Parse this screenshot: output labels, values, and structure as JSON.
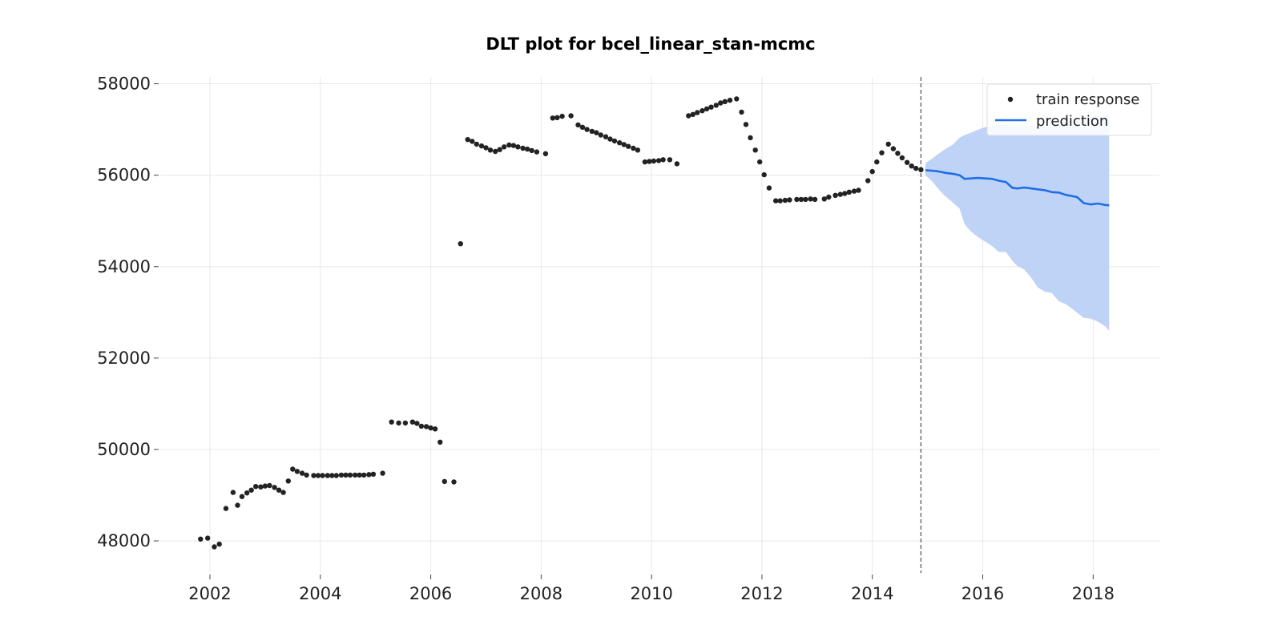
{
  "chart_data": {
    "type": "scatter",
    "title": "DLT plot for bcel_linear_stan-mcmc",
    "xlabel": "",
    "ylabel": "",
    "xlim": [
      2001.1,
      2019.2
    ],
    "ylim": [
      47300,
      58150
    ],
    "x_ticks": [
      2002,
      2004,
      2006,
      2008,
      2010,
      2012,
      2014,
      2016,
      2018
    ],
    "y_ticks": [
      48000,
      50000,
      52000,
      54000,
      56000,
      58000
    ],
    "grid": true,
    "legend_position": "top-right",
    "forecast_start": 2014.88,
    "series": [
      {
        "name": "train response",
        "kind": "scatter",
        "color": "#222222",
        "points": [
          [
            2001.83,
            48040
          ],
          [
            2001.96,
            48060
          ],
          [
            2002.08,
            47870
          ],
          [
            2002.17,
            47930
          ],
          [
            2002.29,
            48710
          ],
          [
            2002.42,
            49060
          ],
          [
            2002.5,
            48780
          ],
          [
            2002.58,
            48970
          ],
          [
            2002.67,
            49050
          ],
          [
            2002.75,
            49110
          ],
          [
            2002.83,
            49190
          ],
          [
            2002.92,
            49180
          ],
          [
            2003.0,
            49200
          ],
          [
            2003.08,
            49210
          ],
          [
            2003.17,
            49170
          ],
          [
            2003.25,
            49110
          ],
          [
            2003.33,
            49060
          ],
          [
            2003.42,
            49310
          ],
          [
            2003.5,
            49570
          ],
          [
            2003.58,
            49520
          ],
          [
            2003.67,
            49480
          ],
          [
            2003.75,
            49440
          ],
          [
            2003.88,
            49430
          ],
          [
            2003.96,
            49430
          ],
          [
            2004.04,
            49430
          ],
          [
            2004.13,
            49430
          ],
          [
            2004.21,
            49430
          ],
          [
            2004.29,
            49430
          ],
          [
            2004.38,
            49440
          ],
          [
            2004.46,
            49440
          ],
          [
            2004.54,
            49440
          ],
          [
            2004.63,
            49440
          ],
          [
            2004.71,
            49440
          ],
          [
            2004.79,
            49440
          ],
          [
            2004.88,
            49450
          ],
          [
            2004.96,
            49460
          ],
          [
            2005.13,
            49480
          ],
          [
            2005.29,
            50600
          ],
          [
            2005.42,
            50580
          ],
          [
            2005.54,
            50580
          ],
          [
            2005.67,
            50600
          ],
          [
            2005.75,
            50570
          ],
          [
            2005.83,
            50510
          ],
          [
            2005.92,
            50500
          ],
          [
            2006.0,
            50470
          ],
          [
            2006.08,
            50450
          ],
          [
            2006.17,
            50160
          ],
          [
            2006.25,
            49300
          ],
          [
            2006.42,
            49290
          ],
          [
            2006.54,
            54500
          ],
          [
            2006.67,
            56780
          ],
          [
            2006.75,
            56740
          ],
          [
            2006.83,
            56680
          ],
          [
            2006.92,
            56640
          ],
          [
            2007.0,
            56600
          ],
          [
            2007.08,
            56550
          ],
          [
            2007.17,
            56520
          ],
          [
            2007.25,
            56560
          ],
          [
            2007.33,
            56620
          ],
          [
            2007.42,
            56660
          ],
          [
            2007.5,
            56650
          ],
          [
            2007.58,
            56620
          ],
          [
            2007.67,
            56590
          ],
          [
            2007.75,
            56570
          ],
          [
            2007.83,
            56540
          ],
          [
            2007.92,
            56510
          ],
          [
            2008.08,
            56470
          ],
          [
            2008.21,
            57250
          ],
          [
            2008.29,
            57260
          ],
          [
            2008.38,
            57290
          ],
          [
            2008.54,
            57300
          ],
          [
            2008.67,
            57100
          ],
          [
            2008.75,
            57050
          ],
          [
            2008.83,
            57000
          ],
          [
            2008.92,
            56960
          ],
          [
            2009.0,
            56930
          ],
          [
            2009.08,
            56880
          ],
          [
            2009.17,
            56840
          ],
          [
            2009.25,
            56790
          ],
          [
            2009.33,
            56750
          ],
          [
            2009.42,
            56710
          ],
          [
            2009.5,
            56670
          ],
          [
            2009.58,
            56630
          ],
          [
            2009.67,
            56590
          ],
          [
            2009.75,
            56550
          ],
          [
            2009.88,
            56290
          ],
          [
            2009.96,
            56300
          ],
          [
            2010.04,
            56310
          ],
          [
            2010.13,
            56320
          ],
          [
            2010.21,
            56340
          ],
          [
            2010.33,
            56340
          ],
          [
            2010.46,
            56250
          ],
          [
            2010.67,
            57300
          ],
          [
            2010.75,
            57330
          ],
          [
            2010.83,
            57370
          ],
          [
            2010.92,
            57410
          ],
          [
            2011.0,
            57450
          ],
          [
            2011.08,
            57490
          ],
          [
            2011.17,
            57530
          ],
          [
            2011.25,
            57580
          ],
          [
            2011.33,
            57610
          ],
          [
            2011.42,
            57640
          ],
          [
            2011.54,
            57670
          ],
          [
            2011.63,
            57380
          ],
          [
            2011.71,
            57110
          ],
          [
            2011.79,
            56820
          ],
          [
            2011.88,
            56550
          ],
          [
            2011.96,
            56290
          ],
          [
            2012.04,
            56010
          ],
          [
            2012.13,
            55720
          ],
          [
            2012.25,
            55440
          ],
          [
            2012.33,
            55440
          ],
          [
            2012.42,
            55450
          ],
          [
            2012.5,
            55460
          ],
          [
            2012.63,
            55470
          ],
          [
            2012.71,
            55470
          ],
          [
            2012.79,
            55470
          ],
          [
            2012.88,
            55480
          ],
          [
            2012.96,
            55470
          ],
          [
            2013.13,
            55480
          ],
          [
            2013.21,
            55520
          ],
          [
            2013.33,
            55560
          ],
          [
            2013.42,
            55580
          ],
          [
            2013.5,
            55600
          ],
          [
            2013.58,
            55630
          ],
          [
            2013.67,
            55650
          ],
          [
            2013.75,
            55670
          ],
          [
            2013.92,
            55880
          ],
          [
            2014.0,
            56080
          ],
          [
            2014.08,
            56290
          ],
          [
            2014.17,
            56490
          ],
          [
            2014.29,
            56680
          ],
          [
            2014.38,
            56580
          ],
          [
            2014.46,
            56480
          ],
          [
            2014.54,
            56380
          ],
          [
            2014.63,
            56280
          ],
          [
            2014.71,
            56200
          ],
          [
            2014.79,
            56150
          ],
          [
            2014.88,
            56120
          ]
        ]
      },
      {
        "name": "prediction",
        "kind": "line",
        "color": "#1f6fe5",
        "points": [
          [
            2014.96,
            56110
          ],
          [
            2015.08,
            56100
          ],
          [
            2015.21,
            56080
          ],
          [
            2015.33,
            56050
          ],
          [
            2015.46,
            56030
          ],
          [
            2015.58,
            56000
          ],
          [
            2015.67,
            55920
          ],
          [
            2015.79,
            55930
          ],
          [
            2015.92,
            55940
          ],
          [
            2016.04,
            55930
          ],
          [
            2016.17,
            55920
          ],
          [
            2016.29,
            55880
          ],
          [
            2016.42,
            55850
          ],
          [
            2016.54,
            55720
          ],
          [
            2016.63,
            55710
          ],
          [
            2016.75,
            55730
          ],
          [
            2016.88,
            55710
          ],
          [
            2017.0,
            55690
          ],
          [
            2017.13,
            55670
          ],
          [
            2017.25,
            55630
          ],
          [
            2017.38,
            55620
          ],
          [
            2017.5,
            55570
          ],
          [
            2017.63,
            55540
          ],
          [
            2017.71,
            55520
          ],
          [
            2017.83,
            55390
          ],
          [
            2017.96,
            55360
          ],
          [
            2018.08,
            55380
          ],
          [
            2018.21,
            55350
          ],
          [
            2018.29,
            55340
          ]
        ]
      },
      {
        "name": "prediction interval",
        "kind": "band",
        "color": "#bfd3f7",
        "x": [
          2014.96,
          2015.08,
          2015.21,
          2015.33,
          2015.46,
          2015.58,
          2015.67,
          2015.79,
          2015.92,
          2016.04,
          2016.17,
          2016.29,
          2016.42,
          2016.54,
          2016.63,
          2016.75,
          2016.88,
          2017.0,
          2017.13,
          2017.25,
          2017.38,
          2017.5,
          2017.63,
          2017.71,
          2017.83,
          2017.96,
          2018.08,
          2018.21,
          2018.29
        ],
        "lower": [
          56000,
          55870,
          55680,
          55530,
          55400,
          55270,
          54930,
          54760,
          54640,
          54550,
          54450,
          54320,
          54320,
          54120,
          54010,
          53940,
          53750,
          53540,
          53450,
          53420,
          53240,
          53180,
          53070,
          52990,
          52880,
          52860,
          52800,
          52700,
          52600
        ],
        "upper": [
          56260,
          56360,
          56480,
          56580,
          56670,
          56820,
          56880,
          56930,
          57000,
          57050,
          57080,
          57100,
          57110,
          57080,
          57080,
          57100,
          57080,
          57070,
          57080,
          57090,
          57130,
          57170,
          57200,
          57230,
          57250,
          57270,
          57290,
          57300,
          57320
        ]
      }
    ]
  }
}
